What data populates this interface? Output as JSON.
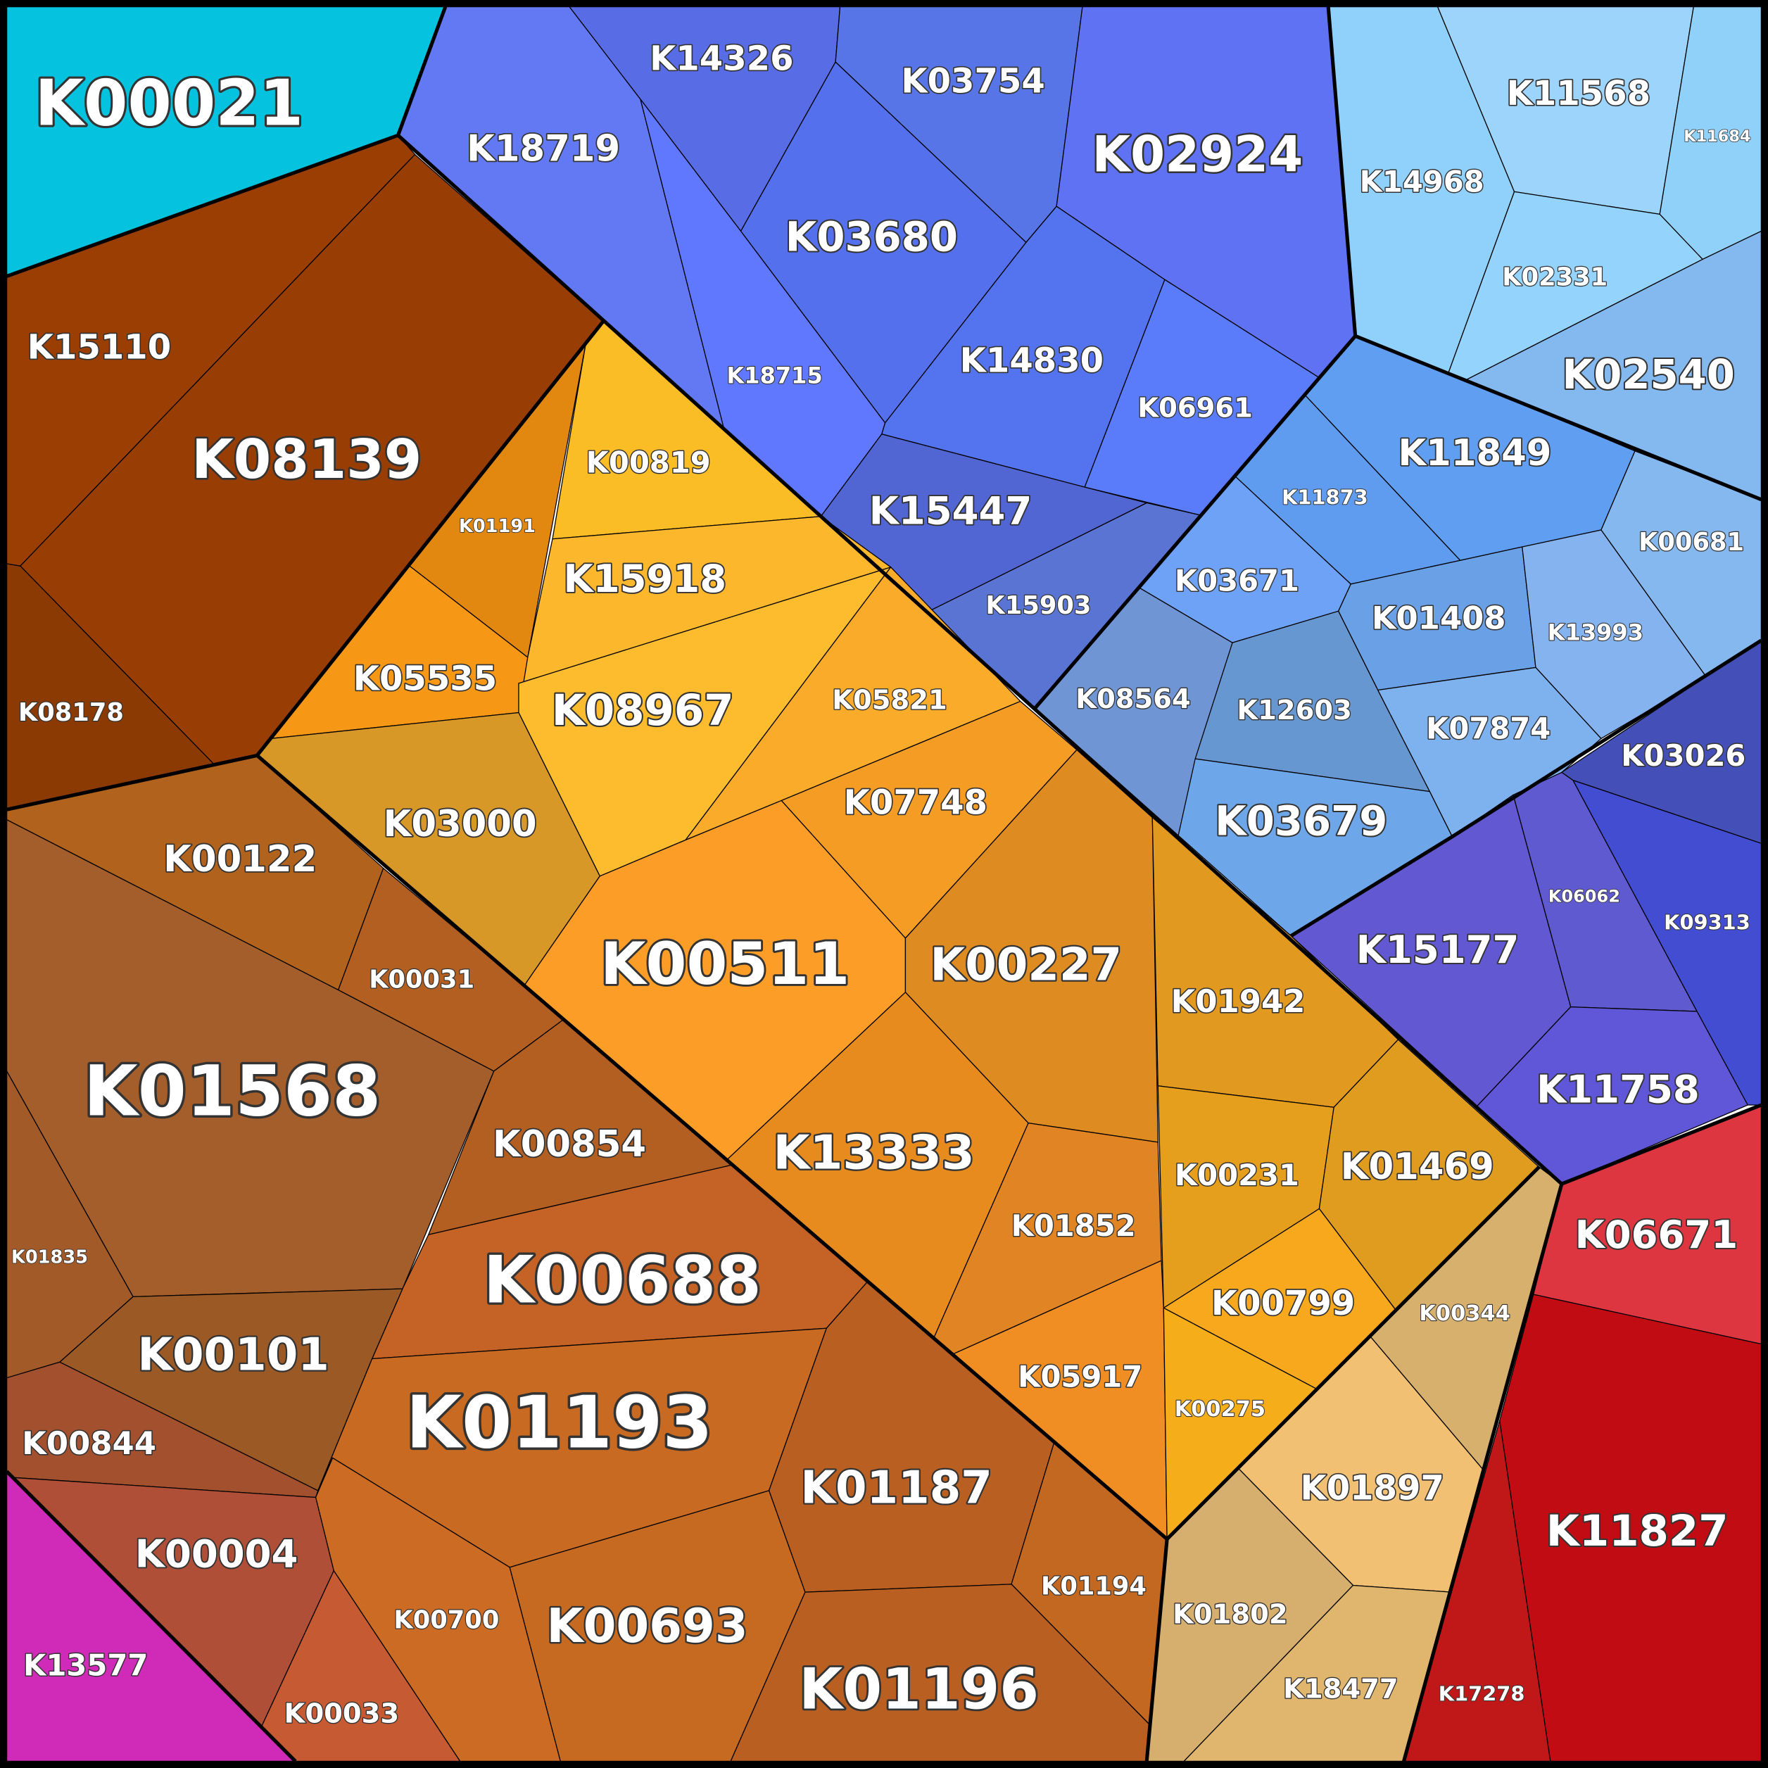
{
  "cells": [
    {
      "label": "K00021"
    },
    {
      "label": "K15110"
    },
    {
      "label": "K08139"
    },
    {
      "label": "K08178"
    },
    {
      "label": "K18719"
    },
    {
      "label": "K14326"
    },
    {
      "label": "K03754"
    },
    {
      "label": "K02924"
    },
    {
      "label": "K18715"
    },
    {
      "label": "K03680"
    },
    {
      "label": "K14830"
    },
    {
      "label": "K06961"
    },
    {
      "label": "K15447"
    },
    {
      "label": "K15903"
    },
    {
      "label": "K14968"
    },
    {
      "label": "K11568"
    },
    {
      "label": "K11684"
    },
    {
      "label": "K02331"
    },
    {
      "label": "K02540"
    },
    {
      "label": "K11849"
    },
    {
      "label": "K00681"
    },
    {
      "label": "K11873"
    },
    {
      "label": "K03671"
    },
    {
      "label": "K01408"
    },
    {
      "label": "K13993"
    },
    {
      "label": "K08564"
    },
    {
      "label": "K12603"
    },
    {
      "label": "K03679"
    },
    {
      "label": "K07874"
    },
    {
      "label": "K03026"
    },
    {
      "label": "K09313"
    },
    {
      "label": "K06062"
    },
    {
      "label": "K15177"
    },
    {
      "label": "K11758"
    },
    {
      "label": "K06671"
    },
    {
      "label": "K11827"
    },
    {
      "label": "K17278"
    },
    {
      "label": "K00344"
    },
    {
      "label": "K01897"
    },
    {
      "label": "K01802"
    },
    {
      "label": "K18477"
    },
    {
      "label": "K01191"
    },
    {
      "label": "K00819"
    },
    {
      "label": "K15918"
    },
    {
      "label": "K05535"
    },
    {
      "label": "K08967"
    },
    {
      "label": "K05821"
    },
    {
      "label": "K03000"
    },
    {
      "label": "K07748"
    },
    {
      "label": "K00511"
    },
    {
      "label": "K00227"
    },
    {
      "label": "K13333"
    },
    {
      "label": "K01942"
    },
    {
      "label": "K00231"
    },
    {
      "label": "K01469"
    },
    {
      "label": "K01852"
    },
    {
      "label": "K05917"
    },
    {
      "label": "K00799"
    },
    {
      "label": "K00275"
    },
    {
      "label": "K00122"
    },
    {
      "label": "K00031"
    },
    {
      "label": "K01568"
    },
    {
      "label": "K01835"
    },
    {
      "label": "K00854"
    },
    {
      "label": "K00688"
    },
    {
      "label": "K00101"
    },
    {
      "label": "K00844"
    },
    {
      "label": "K01193"
    },
    {
      "label": "K01187"
    },
    {
      "label": "K01194"
    },
    {
      "label": "K01196"
    },
    {
      "label": "K00693"
    },
    {
      "label": "K00700"
    },
    {
      "label": "K00033"
    },
    {
      "label": "K00004"
    },
    {
      "label": "K13577"
    }
  ]
}
